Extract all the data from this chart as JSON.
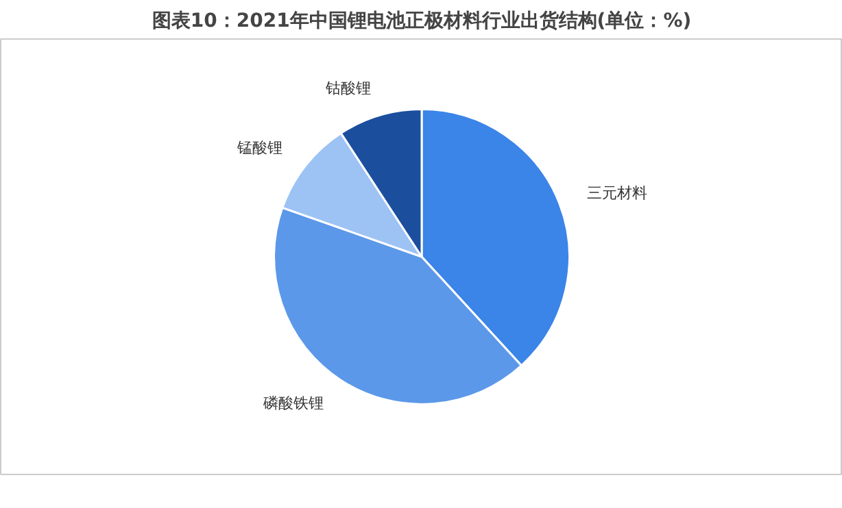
{
  "chart_data": {
    "type": "pie",
    "title": "图表10：2021年中国锂电池正极材料行业出货结构(单位：%)",
    "categories": [
      "三元材料",
      "磷酸铁锂",
      "锰酸锂",
      "钴酸锂"
    ],
    "values": [
      38.2,
      42.2,
      10.4,
      9.2
    ],
    "colors": [
      "#3b84e8",
      "#5c98e9",
      "#9dc2f4",
      "#1b4f9e"
    ]
  }
}
